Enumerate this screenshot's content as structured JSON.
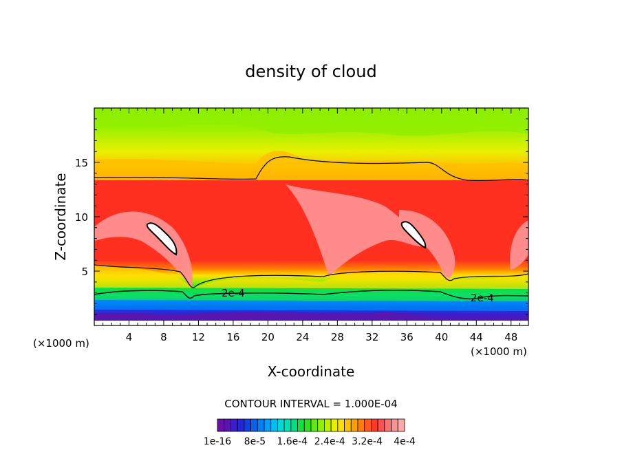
{
  "chart_data": {
    "type": "heatmap",
    "title": "density of cloud",
    "xlabel": "X-coordinate",
    "ylabel": "Z-coordinate",
    "x_unit": "(×1000 m)",
    "z_unit": "(×1000 m)",
    "xlim": [
      0,
      50
    ],
    "ylim": [
      0,
      20
    ],
    "xticks": [
      4,
      8,
      12,
      16,
      20,
      24,
      28,
      32,
      36,
      40,
      44,
      48
    ],
    "yticks": [
      5,
      10,
      15
    ],
    "contour_interval_text": "CONTOUR INTERVAL = 1.000E-04",
    "contour_labels": [
      "2e-4",
      "2e-4"
    ],
    "colorbar_labels": [
      "1e-16",
      "8e-5",
      "1.6e-4",
      "2.4e-4",
      "3.2e-4",
      "4e-4"
    ],
    "colorbar_colors": [
      "#6a0dad",
      "#5a14b0",
      "#3c1ec8",
      "#2028d8",
      "#1040e8",
      "#0a60f0",
      "#0080f8",
      "#00a0f8",
      "#00c0f0",
      "#00d8d8",
      "#00e0b0",
      "#00e080",
      "#10e040",
      "#30e020",
      "#60e810",
      "#90f000",
      "#c0f000",
      "#e8f000",
      "#ffe000",
      "#ffc000",
      "#ffa000",
      "#ff8000",
      "#ff5a1a",
      "#ff3a2a",
      "#ff5050",
      "#ff7070",
      "#ff9090",
      "#ffa8a8"
    ]
  }
}
